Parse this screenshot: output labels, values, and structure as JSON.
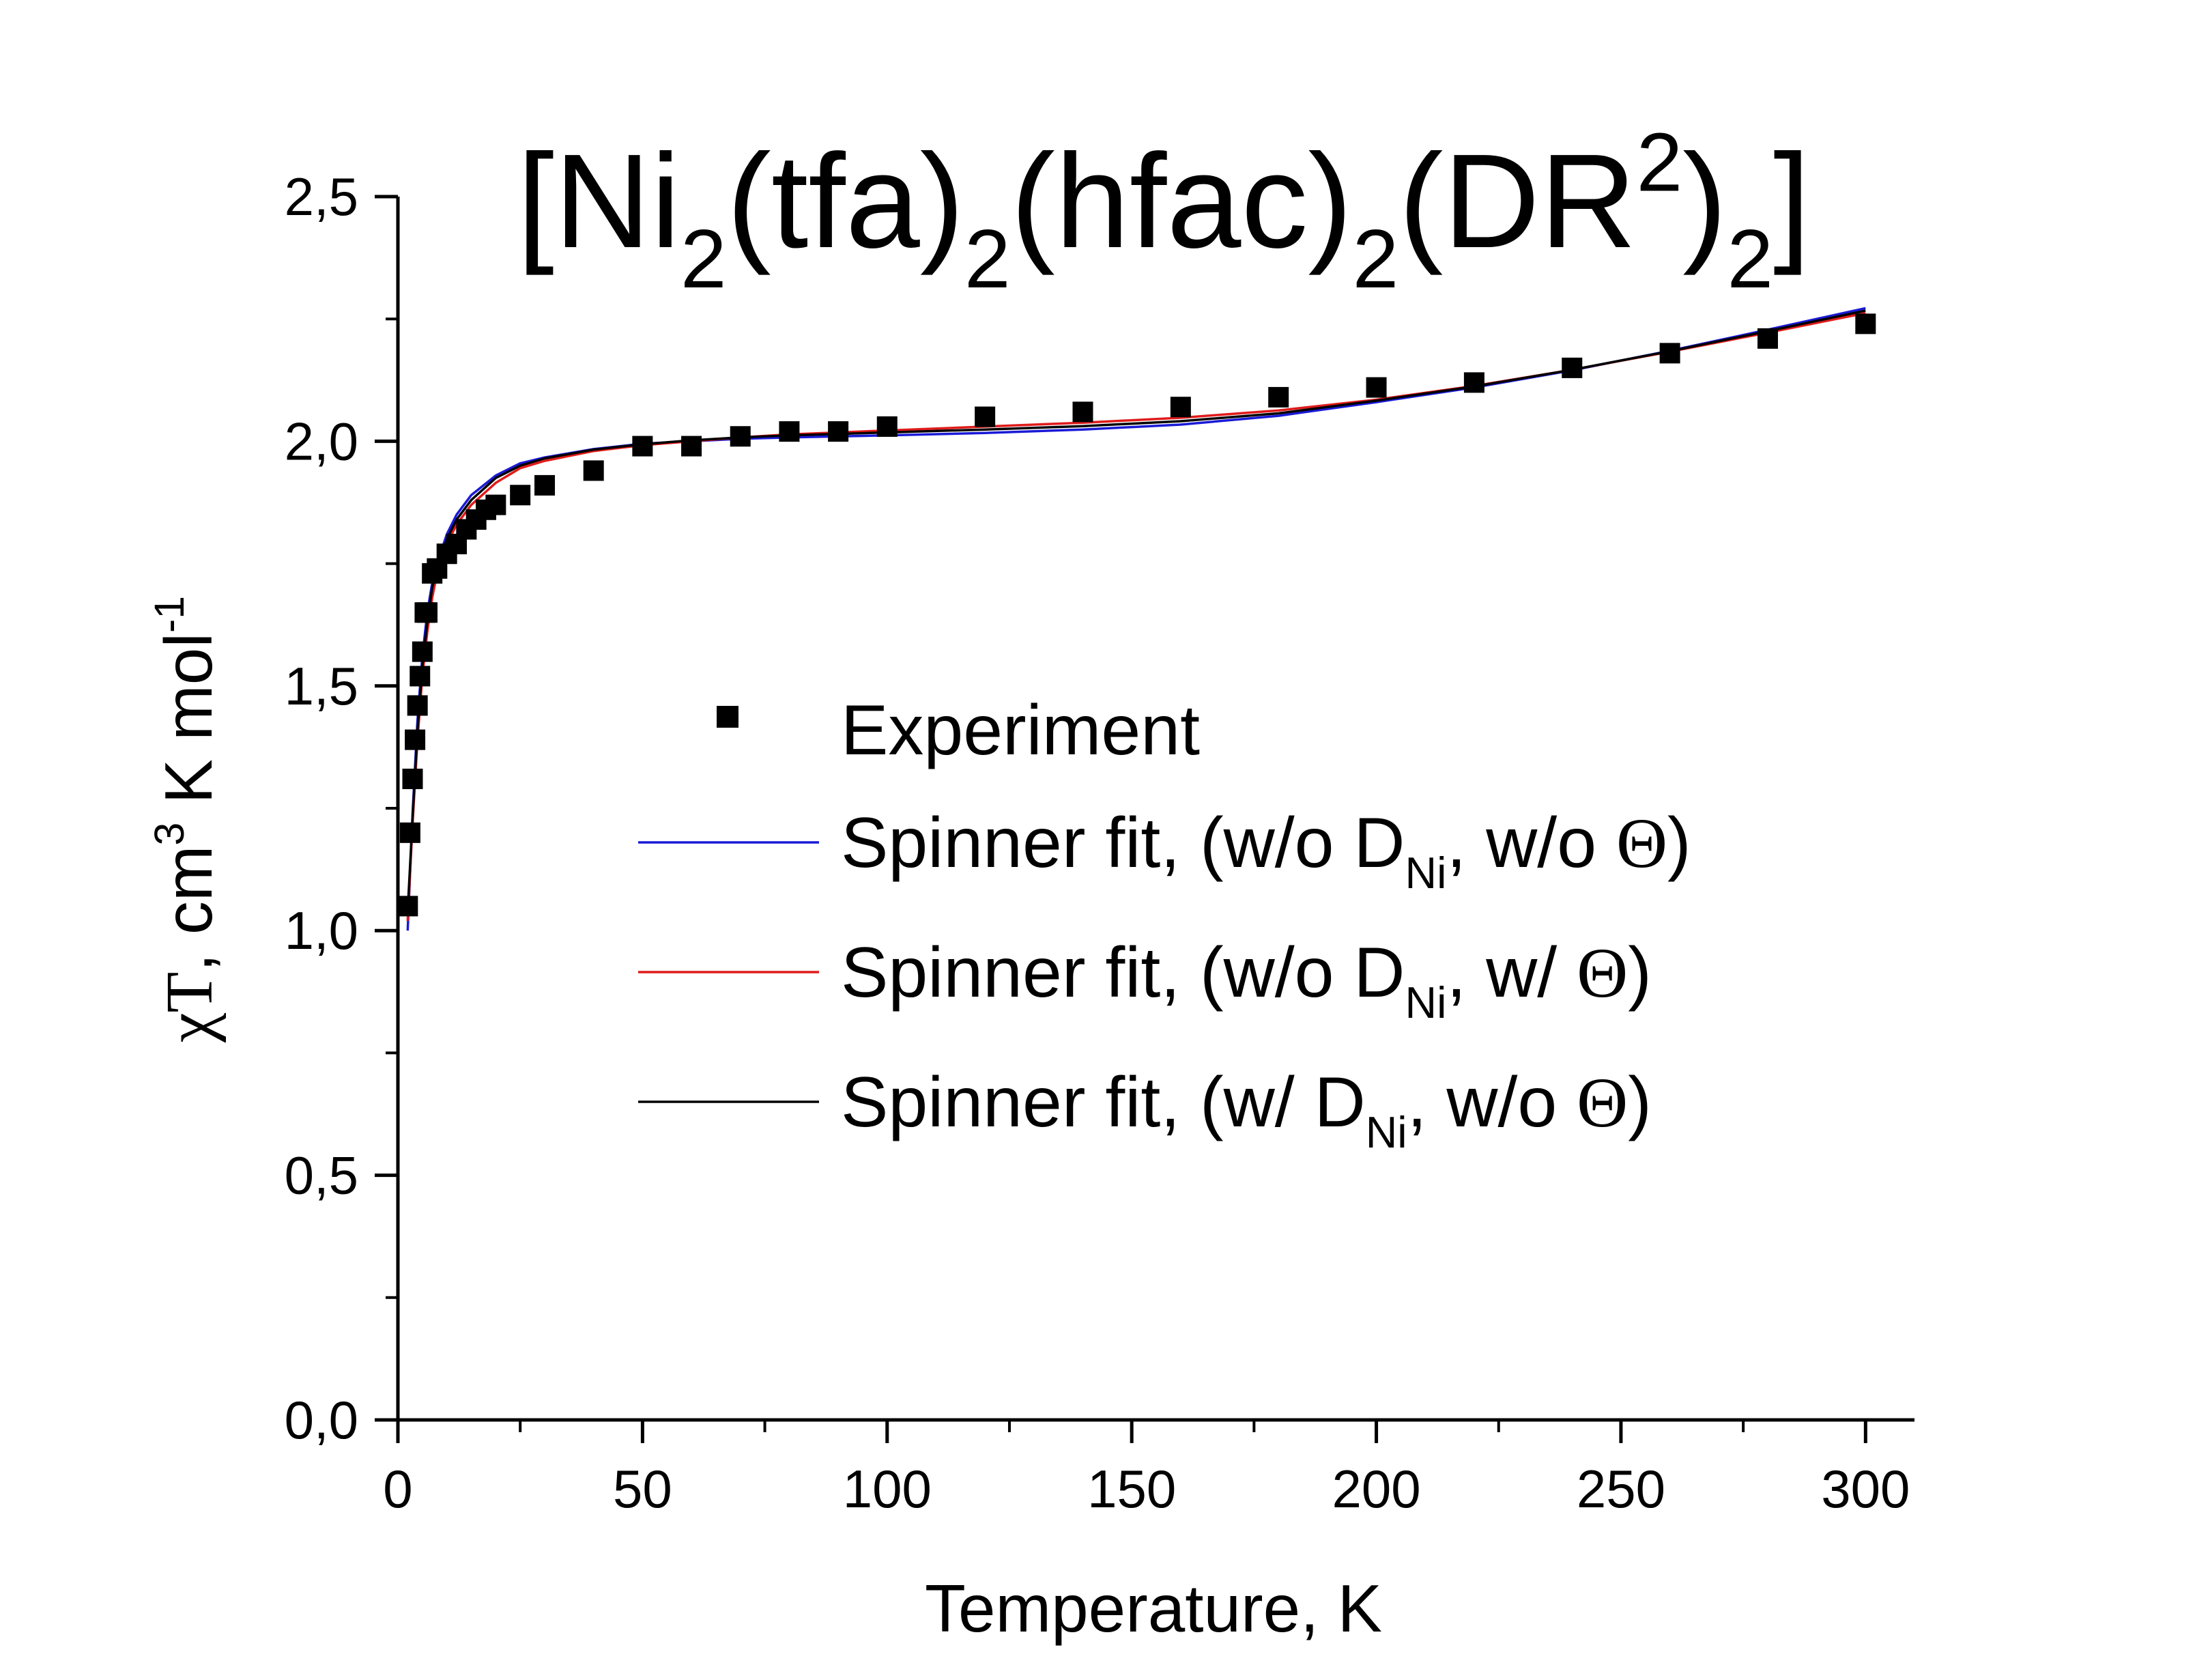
{
  "chart_data": {
    "type": "scatter",
    "title": {
      "parts": [
        {
          "text": "[Ni"
        },
        {
          "text": "2",
          "sub": true
        },
        {
          "text": "(tfa)"
        },
        {
          "text": "2",
          "sub": true
        },
        {
          "text": "(hfac)"
        },
        {
          "text": "2",
          "sub": true
        },
        {
          "text": "(DR"
        },
        {
          "text": "2",
          "sup": true
        },
        {
          "text": ")"
        },
        {
          "text": "2",
          "sub": true
        },
        {
          "text": "]"
        }
      ]
    },
    "xlabel": "Temperature, K",
    "ylabel": {
      "parts": [
        {
          "text": "χT",
          "serif": true
        },
        {
          "text": ", cm"
        },
        {
          "text": "3",
          "sup": true
        },
        {
          "text": " K mol"
        },
        {
          "text": "-1",
          "sup": true
        }
      ]
    },
    "xlim": [
      0,
      310
    ],
    "ylim": [
      0,
      2.5
    ],
    "xticks": [
      0,
      50,
      100,
      150,
      200,
      250,
      300
    ],
    "xtick_labels": [
      "0",
      "50",
      "100",
      "150",
      "200",
      "250",
      "300"
    ],
    "yticks": [
      0,
      0.5,
      1.0,
      1.5,
      2.0,
      2.5
    ],
    "ytick_labels": [
      "0,0",
      "0,5",
      "1,0",
      "1,5",
      "2,0",
      "2,5"
    ],
    "grid": false,
    "legend_position": "center-right",
    "series": [
      {
        "name": "Experiment",
        "kind": "markers",
        "marker": "square",
        "color": "#000000",
        "legend_parts": [
          {
            "text": "Experiment"
          }
        ],
        "x": [
          2,
          2.5,
          3,
          3.5,
          4,
          4.5,
          5,
          5.5,
          6,
          7,
          8,
          10,
          12,
          14,
          16,
          18,
          20,
          25,
          30,
          40,
          50,
          60,
          70,
          80,
          90,
          100,
          120,
          140,
          160,
          180,
          200,
          220,
          240,
          260,
          280,
          300
        ],
        "y": [
          1.05,
          1.2,
          1.31,
          1.39,
          1.46,
          1.52,
          1.57,
          1.65,
          1.65,
          1.73,
          1.74,
          1.77,
          1.79,
          1.82,
          1.84,
          1.86,
          1.87,
          1.89,
          1.91,
          1.94,
          1.99,
          1.99,
          2.01,
          2.02,
          2.02,
          2.03,
          2.05,
          2.06,
          2.07,
          2.09,
          2.11,
          2.12,
          2.15,
          2.18,
          2.21,
          2.24
        ]
      },
      {
        "name": "Spinner fit, (w/o DNi, w/o Θ)",
        "kind": "line",
        "color": "#1a1ad6",
        "legend_parts": [
          {
            "text": "Spinner fit, (w/o D"
          },
          {
            "text": "Ni",
            "sub": true
          },
          {
            "text": ", w/o "
          },
          {
            "text": "Θ",
            "serif": true
          },
          {
            "text": ")"
          }
        ],
        "x": [
          2,
          3,
          4,
          5,
          6,
          7,
          8,
          10,
          12,
          15,
          20,
          25,
          30,
          40,
          50,
          60,
          70,
          80,
          90,
          100,
          120,
          140,
          160,
          180,
          200,
          220,
          240,
          260,
          280,
          300
        ],
        "y": [
          1.0,
          1.24,
          1.43,
          1.56,
          1.65,
          1.71,
          1.75,
          1.81,
          1.85,
          1.89,
          1.93,
          1.955,
          1.967,
          1.984,
          1.995,
          2.0,
          2.005,
          2.008,
          2.01,
          2.012,
          2.017,
          2.024,
          2.034,
          2.052,
          2.08,
          2.11,
          2.145,
          2.185,
          2.228,
          2.272
        ]
      },
      {
        "name": "Spinner fit, (w/o DNi, w/ Θ)",
        "kind": "line",
        "color": "#e01b1b",
        "legend_parts": [
          {
            "text": "Spinner fit, (w/o D"
          },
          {
            "text": "Ni",
            "sub": true
          },
          {
            "text": ", w/ "
          },
          {
            "text": "Θ",
            "serif": true
          },
          {
            "text": ")"
          }
        ],
        "x": [
          2,
          3,
          4,
          5,
          6,
          7,
          8,
          10,
          12,
          15,
          20,
          25,
          30,
          40,
          50,
          60,
          70,
          80,
          90,
          100,
          120,
          140,
          160,
          180,
          200,
          220,
          240,
          260,
          280,
          300
        ],
        "y": [
          1.02,
          1.22,
          1.39,
          1.52,
          1.61,
          1.68,
          1.73,
          1.79,
          1.83,
          1.87,
          1.915,
          1.945,
          1.96,
          1.98,
          1.992,
          2.0,
          2.008,
          2.014,
          2.018,
          2.022,
          2.03,
          2.038,
          2.048,
          2.063,
          2.085,
          2.113,
          2.146,
          2.183,
          2.222,
          2.262
        ]
      },
      {
        "name": "Spinner fit, (w/ DNi, w/o Θ)",
        "kind": "line",
        "color": "#000000",
        "legend_parts": [
          {
            "text": "Spinner fit, (w/ D"
          },
          {
            "text": "Ni",
            "sub": true
          },
          {
            "text": ", w/o "
          },
          {
            "text": "Θ",
            "serif": true
          },
          {
            "text": ")"
          }
        ],
        "x": [
          2,
          3,
          4,
          5,
          6,
          7,
          8,
          10,
          12,
          15,
          20,
          25,
          30,
          40,
          50,
          60,
          70,
          80,
          90,
          100,
          120,
          140,
          160,
          180,
          200,
          220,
          240,
          260,
          280,
          300
        ],
        "y": [
          1.04,
          1.23,
          1.41,
          1.54,
          1.63,
          1.7,
          1.74,
          1.8,
          1.84,
          1.88,
          1.925,
          1.95,
          1.965,
          1.983,
          1.994,
          2.002,
          2.008,
          2.012,
          2.015,
          2.018,
          2.024,
          2.031,
          2.041,
          2.057,
          2.083,
          2.112,
          2.146,
          2.184,
          2.225,
          2.267
        ]
      }
    ]
  }
}
